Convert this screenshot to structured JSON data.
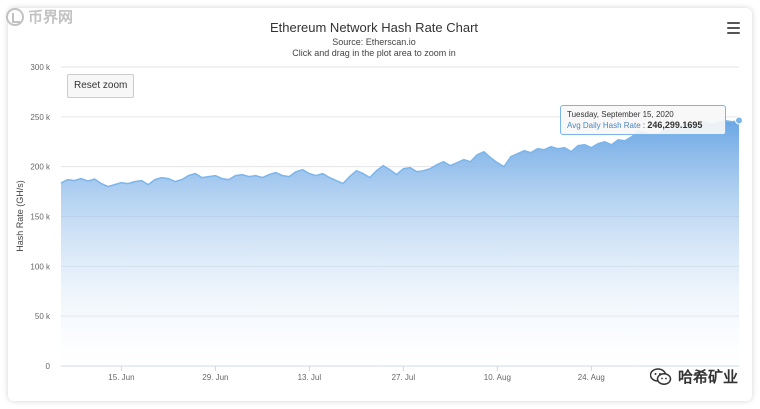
{
  "watermark_top": "币界网",
  "watermark_bottom": "哈希矿业",
  "reset_zoom_label": "Reset zoom",
  "menu_icon": "hamburger-menu-icon",
  "colors": {
    "series": "#7cb5ec",
    "fill_top": "#6aa6e4",
    "fill_bottom": "#ffffff",
    "grid": "#e6e6e6",
    "axis_text": "#666666"
  },
  "chart_data": {
    "type": "area",
    "title": "Ethereum Network Hash Rate Chart",
    "subtitle": "Source: Etherscan.io",
    "subtitle2": "Click and drag in the plot area to zoom in",
    "ylabel": "Hash Rate (GH/s)",
    "ylim": [
      0,
      300000
    ],
    "yticks": [
      0,
      50000,
      100000,
      150000,
      200000,
      250000,
      300000
    ],
    "ytick_labels": [
      "0",
      "50 k",
      "100 k",
      "150 k",
      "200 k",
      "250 k",
      "300 k"
    ],
    "x_start": "2020-06-06",
    "x_end": "2020-09-15",
    "xtick_dates": [
      "2020-06-15",
      "2020-06-29",
      "2020-07-13",
      "2020-07-27",
      "2020-08-10",
      "2020-08-24"
    ],
    "xtick_labels": [
      "15. Jun",
      "29. Jun",
      "13. Jul",
      "27. Jul",
      "10. Aug",
      "24. Aug"
    ],
    "grid": true,
    "legend": "none",
    "series": [
      {
        "name": "Avg Daily Hash Rate",
        "x": [
          "2020-06-06",
          "2020-06-07",
          "2020-06-08",
          "2020-06-09",
          "2020-06-10",
          "2020-06-11",
          "2020-06-12",
          "2020-06-13",
          "2020-06-14",
          "2020-06-15",
          "2020-06-16",
          "2020-06-17",
          "2020-06-18",
          "2020-06-19",
          "2020-06-20",
          "2020-06-21",
          "2020-06-22",
          "2020-06-23",
          "2020-06-24",
          "2020-06-25",
          "2020-06-26",
          "2020-06-27",
          "2020-06-28",
          "2020-06-29",
          "2020-06-30",
          "2020-07-01",
          "2020-07-02",
          "2020-07-03",
          "2020-07-04",
          "2020-07-05",
          "2020-07-06",
          "2020-07-07",
          "2020-07-08",
          "2020-07-09",
          "2020-07-10",
          "2020-07-11",
          "2020-07-12",
          "2020-07-13",
          "2020-07-14",
          "2020-07-15",
          "2020-07-16",
          "2020-07-17",
          "2020-07-18",
          "2020-07-19",
          "2020-07-20",
          "2020-07-21",
          "2020-07-22",
          "2020-07-23",
          "2020-07-24",
          "2020-07-25",
          "2020-07-26",
          "2020-07-27",
          "2020-07-28",
          "2020-07-29",
          "2020-07-30",
          "2020-07-31",
          "2020-08-01",
          "2020-08-02",
          "2020-08-03",
          "2020-08-04",
          "2020-08-05",
          "2020-08-06",
          "2020-08-07",
          "2020-08-08",
          "2020-08-09",
          "2020-08-10",
          "2020-08-11",
          "2020-08-12",
          "2020-08-13",
          "2020-08-14",
          "2020-08-15",
          "2020-08-16",
          "2020-08-17",
          "2020-08-18",
          "2020-08-19",
          "2020-08-20",
          "2020-08-21",
          "2020-08-22",
          "2020-08-23",
          "2020-08-24",
          "2020-08-25",
          "2020-08-26",
          "2020-08-27",
          "2020-08-28",
          "2020-08-29",
          "2020-08-30",
          "2020-08-31",
          "2020-09-01",
          "2020-09-02",
          "2020-09-03",
          "2020-09-04",
          "2020-09-05",
          "2020-09-06",
          "2020-09-07",
          "2020-09-08",
          "2020-09-09",
          "2020-09-10",
          "2020-09-11",
          "2020-09-12",
          "2020-09-13",
          "2020-09-14",
          "2020-09-15"
        ],
        "values": [
          183500,
          187000,
          186000,
          188000,
          185500,
          187500,
          183000,
          180000,
          182000,
          184000,
          183000,
          185000,
          186000,
          182000,
          187000,
          189000,
          188000,
          185000,
          187000,
          191000,
          193000,
          189000,
          190000,
          191000,
          188000,
          187000,
          191000,
          192000,
          190000,
          191000,
          189000,
          192000,
          194000,
          191000,
          190000,
          195000,
          197000,
          193000,
          191000,
          193000,
          189000,
          186000,
          183000,
          190000,
          196000,
          193000,
          189000,
          196000,
          201000,
          197000,
          192000,
          198000,
          199000,
          195000,
          196000,
          198000,
          202000,
          205000,
          201000,
          204000,
          207000,
          205000,
          212000,
          215000,
          209000,
          204000,
          200000,
          210000,
          213000,
          216000,
          214000,
          218000,
          217000,
          220000,
          218000,
          219000,
          215000,
          221000,
          222000,
          219000,
          223000,
          225000,
          222000,
          227000,
          226000,
          230000,
          236000,
          234000,
          232000,
          233000,
          238000,
          237000,
          240000,
          243000,
          242000,
          244000,
          245000,
          243000,
          245000,
          246000,
          245000,
          246299.1695
        ]
      }
    ],
    "tooltip": {
      "date": "Tuesday, September 15, 2020",
      "series": "Avg Daily Hash Rate",
      "value": "246,299.1695"
    }
  }
}
